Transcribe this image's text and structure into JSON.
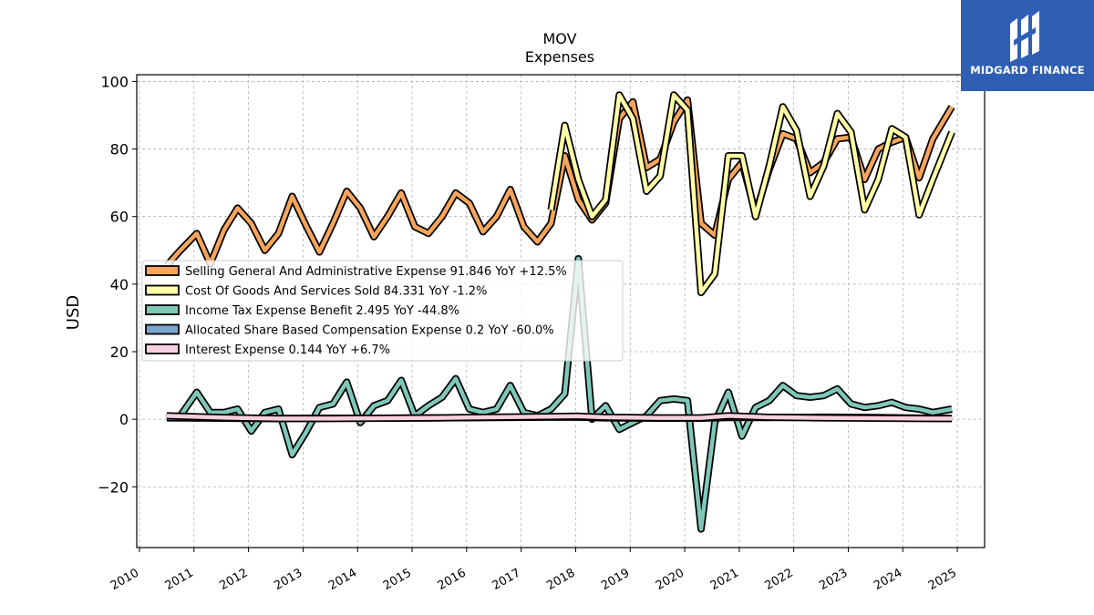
{
  "chart_data": {
    "type": "line",
    "title": "MOV",
    "subtitle": "Expenses",
    "ylabel": "USD",
    "xlabel": "",
    "ylim": [
      -38,
      102
    ],
    "xlim": [
      2009.95,
      2025.5
    ],
    "y_ticks": [
      -20,
      0,
      20,
      40,
      60,
      80,
      100
    ],
    "y_tick_labels": [
      "−20",
      "0",
      "20",
      "40",
      "60",
      "80",
      "100"
    ],
    "x_ticks": [
      2010,
      2011,
      2012,
      2013,
      2014,
      2015,
      2016,
      2017,
      2018,
      2019,
      2020,
      2021,
      2022,
      2023,
      2024,
      2025
    ],
    "x_tick_labels": [
      "2010",
      "2011",
      "2012",
      "2013",
      "2014",
      "2015",
      "2016",
      "2017",
      "2018",
      "2019",
      "2020",
      "2021",
      "2022",
      "2023",
      "2024",
      "2025"
    ],
    "grid": true,
    "legend_position": "center-left",
    "series": [
      {
        "name": "Selling General And Administrative Expense",
        "legend_label": "Selling General And Administrative Expense  91.846 YoY +12.5%",
        "color": "#f6a55c",
        "points": [
          [
            2010.5,
            45.5
          ],
          [
            2010.75,
            50
          ],
          [
            2011.05,
            55
          ],
          [
            2011.3,
            46
          ],
          [
            2011.55,
            56
          ],
          [
            2011.8,
            62.5
          ],
          [
            2012.05,
            58
          ],
          [
            2012.3,
            50
          ],
          [
            2012.55,
            55
          ],
          [
            2012.8,
            66
          ],
          [
            2013.05,
            57.5
          ],
          [
            2013.3,
            49.5
          ],
          [
            2013.55,
            58
          ],
          [
            2013.8,
            67.5
          ],
          [
            2014.05,
            62.5
          ],
          [
            2014.3,
            54
          ],
          [
            2014.55,
            60
          ],
          [
            2014.8,
            67
          ],
          [
            2015.05,
            57
          ],
          [
            2015.3,
            55
          ],
          [
            2015.55,
            60
          ],
          [
            2015.8,
            67
          ],
          [
            2016.05,
            64
          ],
          [
            2016.3,
            55.5
          ],
          [
            2016.55,
            60
          ],
          [
            2016.8,
            68
          ],
          [
            2017.05,
            57
          ],
          [
            2017.3,
            52.5
          ],
          [
            2017.55,
            58
          ],
          [
            2017.8,
            78
          ],
          [
            2018.05,
            65
          ],
          [
            2018.3,
            59
          ],
          [
            2018.55,
            64
          ],
          [
            2018.8,
            89
          ],
          [
            2019.05,
            94
          ],
          [
            2019.3,
            74.5
          ],
          [
            2019.55,
            77
          ],
          [
            2019.8,
            88
          ],
          [
            2020.05,
            94.5
          ],
          [
            2020.3,
            58
          ],
          [
            2020.55,
            54.5
          ],
          [
            2020.8,
            71
          ],
          [
            2021.05,
            76
          ],
          [
            2021.3,
            61
          ],
          [
            2021.55,
            74
          ],
          [
            2021.8,
            84.5
          ],
          [
            2022.05,
            83
          ],
          [
            2022.3,
            73
          ],
          [
            2022.55,
            76
          ],
          [
            2022.8,
            83
          ],
          [
            2023.05,
            83.5
          ],
          [
            2023.3,
            71
          ],
          [
            2023.55,
            80
          ],
          [
            2023.8,
            82
          ],
          [
            2024.05,
            83.5
          ],
          [
            2024.3,
            71.5
          ],
          [
            2024.55,
            83
          ],
          [
            2024.9,
            92.5
          ]
        ]
      },
      {
        "name": "Cost Of Goods And Services Sold",
        "legend_label": "Cost Of Goods And Services Sold  84.331 YoY -1.2%",
        "color": "#fefea7",
        "points": [
          [
            2017.55,
            62
          ],
          [
            2017.8,
            87
          ],
          [
            2018.05,
            71
          ],
          [
            2018.3,
            60
          ],
          [
            2018.55,
            65
          ],
          [
            2018.8,
            96
          ],
          [
            2019.05,
            89
          ],
          [
            2019.3,
            67.5
          ],
          [
            2019.55,
            72
          ],
          [
            2019.8,
            96
          ],
          [
            2020.05,
            91.5
          ],
          [
            2020.3,
            37.5
          ],
          [
            2020.55,
            43
          ],
          [
            2020.8,
            78
          ],
          [
            2021.05,
            78
          ],
          [
            2021.3,
            60
          ],
          [
            2021.55,
            75
          ],
          [
            2021.8,
            92.5
          ],
          [
            2022.05,
            85.5
          ],
          [
            2022.3,
            66
          ],
          [
            2022.55,
            75
          ],
          [
            2022.8,
            90.5
          ],
          [
            2023.05,
            85
          ],
          [
            2023.3,
            62
          ],
          [
            2023.55,
            71
          ],
          [
            2023.8,
            86
          ],
          [
            2024.05,
            83.5
          ],
          [
            2024.3,
            60.5
          ],
          [
            2024.55,
            71
          ],
          [
            2024.9,
            85
          ]
        ]
      },
      {
        "name": "Income Tax Expense Benefit",
        "legend_label": "Income Tax Expense Benefit  2.495 YoY -44.8%",
        "color": "#7fc8b8",
        "points": [
          [
            2010.5,
            0.5
          ],
          [
            2010.75,
            1
          ],
          [
            2011.05,
            8
          ],
          [
            2011.3,
            2
          ],
          [
            2011.55,
            2
          ],
          [
            2011.8,
            3
          ],
          [
            2012.05,
            -3.5
          ],
          [
            2012.3,
            2
          ],
          [
            2012.55,
            3
          ],
          [
            2012.8,
            -10.5
          ],
          [
            2013.05,
            -4
          ],
          [
            2013.3,
            3.5
          ],
          [
            2013.55,
            4.5
          ],
          [
            2013.8,
            11
          ],
          [
            2014.05,
            -1
          ],
          [
            2014.3,
            4
          ],
          [
            2014.55,
            5.5
          ],
          [
            2014.8,
            11.5
          ],
          [
            2015.05,
            1
          ],
          [
            2015.3,
            4
          ],
          [
            2015.55,
            6.5
          ],
          [
            2015.8,
            12
          ],
          [
            2016.05,
            3
          ],
          [
            2016.3,
            2
          ],
          [
            2016.55,
            3
          ],
          [
            2016.8,
            10
          ],
          [
            2017.05,
            2
          ],
          [
            2017.3,
            1
          ],
          [
            2017.55,
            3
          ],
          [
            2017.8,
            7.5
          ],
          [
            2018.05,
            47.5
          ],
          [
            2018.3,
            0
          ],
          [
            2018.55,
            4
          ],
          [
            2018.8,
            -3
          ],
          [
            2019.05,
            -1
          ],
          [
            2019.3,
            1
          ],
          [
            2019.55,
            5.5
          ],
          [
            2019.8,
            6
          ],
          [
            2020.05,
            5.5
          ],
          [
            2020.3,
            -32.5
          ],
          [
            2020.55,
            -1
          ],
          [
            2020.8,
            8
          ],
          [
            2021.05,
            -5
          ],
          [
            2021.3,
            3.5
          ],
          [
            2021.55,
            5.5
          ],
          [
            2021.8,
            10
          ],
          [
            2022.05,
            7
          ],
          [
            2022.3,
            6.5
          ],
          [
            2022.55,
            7
          ],
          [
            2022.8,
            9
          ],
          [
            2023.05,
            4.5
          ],
          [
            2023.3,
            3.5
          ],
          [
            2023.55,
            4
          ],
          [
            2023.8,
            5
          ],
          [
            2024.05,
            3.5
          ],
          [
            2024.3,
            3
          ],
          [
            2024.55,
            2
          ],
          [
            2024.9,
            3
          ]
        ]
      },
      {
        "name": "Allocated Share Based Compensation Expense",
        "legend_label": "Allocated Share Based Compensation Expense  0.2 YoY -60.0%",
        "color": "#7aa6cc",
        "points": [
          [
            2010.5,
            0.4
          ],
          [
            2011.5,
            0.3
          ],
          [
            2012.5,
            0.2
          ],
          [
            2013.5,
            0.3
          ],
          [
            2014.5,
            0.3
          ],
          [
            2015.5,
            0.4
          ],
          [
            2016.5,
            0.5
          ],
          [
            2017.5,
            0.6
          ],
          [
            2018.05,
            0.6
          ],
          [
            2018.5,
            0.4
          ],
          [
            2019.5,
            0.3
          ],
          [
            2020.3,
            0.3
          ],
          [
            2020.8,
            0.5
          ],
          [
            2021.5,
            0.5
          ],
          [
            2022.5,
            0.6
          ],
          [
            2023.5,
            0.5
          ],
          [
            2024.5,
            0.3
          ],
          [
            2024.9,
            0.2
          ]
        ]
      },
      {
        "name": "Interest Expense",
        "legend_label": "Interest Expense  0.144 YoY +6.7%",
        "color": "#f8cfe0",
        "points": [
          [
            2010.5,
            1
          ],
          [
            2011.5,
            0.5
          ],
          [
            2012.5,
            0.2
          ],
          [
            2013.5,
            0.2
          ],
          [
            2014.5,
            0.3
          ],
          [
            2015.5,
            0.4
          ],
          [
            2016.5,
            0.6
          ],
          [
            2017.5,
            0.8
          ],
          [
            2018.05,
            0.9
          ],
          [
            2018.5,
            0.6
          ],
          [
            2019.5,
            0.4
          ],
          [
            2020.3,
            0.4
          ],
          [
            2020.8,
            1
          ],
          [
            2021.5,
            0.6
          ],
          [
            2022.5,
            0.4
          ],
          [
            2023.5,
            0.3
          ],
          [
            2024.5,
            0.2
          ],
          [
            2024.9,
            0.2
          ]
        ]
      }
    ]
  },
  "logo": {
    "text": "MIDGARD FINANCE",
    "background": "#2f5fb3"
  }
}
